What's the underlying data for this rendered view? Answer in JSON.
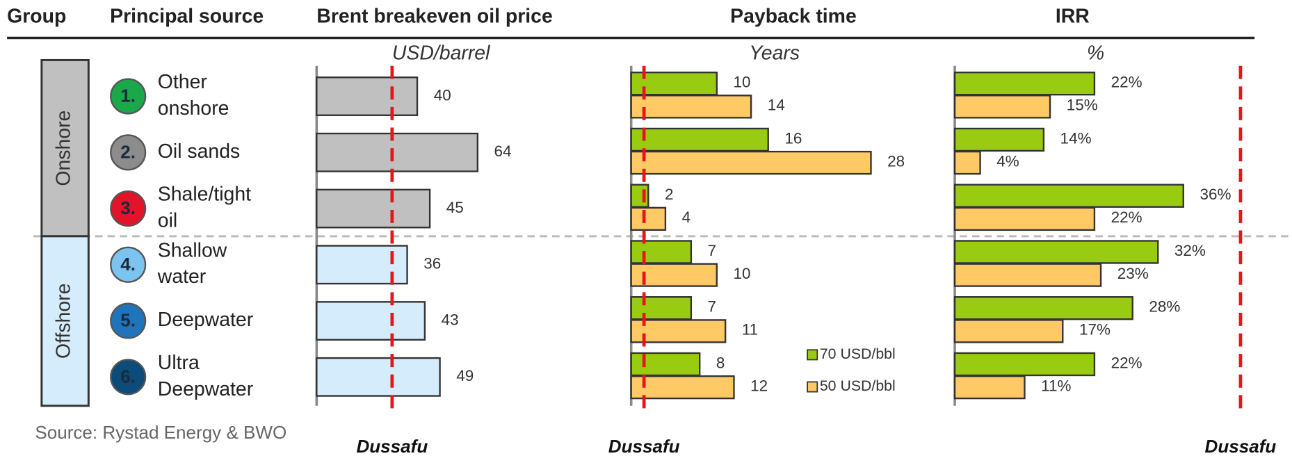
{
  "headers": [
    "Group",
    "Principal source",
    "Brent breakeven oil price",
    "Payback time",
    "IRR"
  ],
  "groups": [
    {
      "name": "Onshore",
      "color": "#c0c0c0"
    },
    {
      "name": "Offshore",
      "color": "#d4ecfb"
    }
  ],
  "sources": [
    {
      "number": "1.",
      "name": [
        "Other",
        "onshore"
      ],
      "color": "#1aa84a"
    },
    {
      "number": "2.",
      "name": [
        "Oil sands"
      ],
      "color": "#8c8c8c"
    },
    {
      "number": "3.",
      "name": [
        "Shale/tight",
        "oil"
      ],
      "color": "#e3132a"
    },
    {
      "number": "4.",
      "name": [
        "Shallow",
        "water"
      ],
      "color": "#7cc4f0"
    },
    {
      "number": "5.",
      "name": [
        "Deepwater"
      ],
      "color": "#1f74bb"
    },
    {
      "number": "6.",
      "name": [
        "Ultra",
        "Deepwater"
      ],
      "color": "#0c4c7a"
    }
  ],
  "source_note": "Source: Rystad Energy & BWO",
  "chart_data": [
    {
      "type": "bar",
      "orientation": "horizontal",
      "xlabel": "USD/barrel",
      "xlim": [
        0,
        110
      ],
      "values": [
        40,
        64,
        45,
        36,
        43,
        49
      ],
      "colors": [
        "#c0c0c0",
        "#c0c0c0",
        "#c0c0c0",
        "#d4ecfb",
        "#d4ecfb",
        "#d4ecfb"
      ],
      "reference": {
        "value": 30,
        "label": "Dussafu",
        "color": "#e8141b"
      }
    },
    {
      "type": "grouped_bar",
      "orientation": "horizontal",
      "xlabel": "Years",
      "xlim": [
        0,
        35
      ],
      "series": [
        {
          "name": "70 USD/bbl",
          "color": "#99cc11",
          "values": [
            10,
            16,
            2,
            7,
            7,
            8
          ]
        },
        {
          "name": "50 USD/bbl",
          "color": "#ffc966",
          "values": [
            14,
            28,
            4,
            10,
            11,
            12
          ]
        }
      ],
      "legend": "lower right",
      "reference": {
        "value": 1.5,
        "label": "Dussafu",
        "color": "#e8141b"
      }
    },
    {
      "type": "grouped_bar",
      "orientation": "horizontal",
      "xlabel": "%",
      "xlim": [
        0,
        52
      ],
      "series": [
        {
          "name": "70 USD/bbl",
          "color": "#99cc11",
          "values": [
            22,
            14,
            36,
            32,
            28,
            22
          ],
          "value_labels": [
            "22%",
            "14%",
            "36%",
            "32%",
            "28%",
            "22%"
          ]
        },
        {
          "name": "50 USD/bbl",
          "color": "#ffc966",
          "values": [
            15,
            4,
            22,
            23,
            17,
            11
          ],
          "value_labels": [
            "15%",
            "4%",
            "22%",
            "23%",
            "17%",
            "11%"
          ]
        }
      ],
      "reference": {
        "value": 45,
        "label": "Dussafu",
        "color": "#e8141b"
      }
    }
  ]
}
